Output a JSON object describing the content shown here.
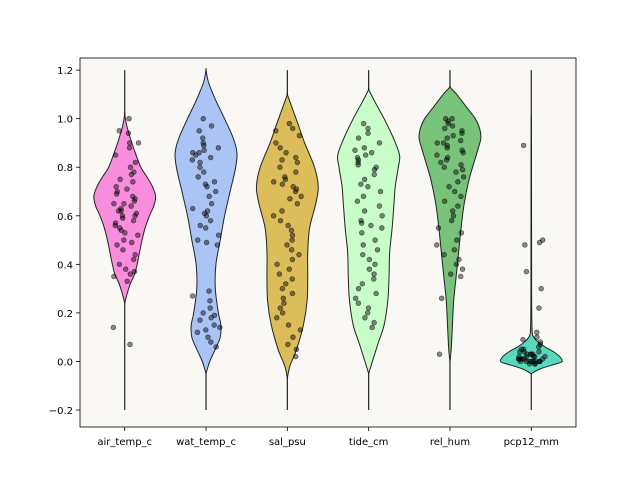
{
  "chart_data": {
    "type": "violin",
    "categories": [
      "air_temp_c",
      "wat_temp_c",
      "sal_psu",
      "tide_cm",
      "rel_hum",
      "pcp12_mm"
    ],
    "ylim": [
      -0.27,
      1.25
    ],
    "yticks": [
      -0.2,
      0.0,
      0.2,
      0.4,
      0.6,
      0.8,
      1.0,
      1.2
    ],
    "ytick_labels": [
      "−0.2",
      "0.0",
      "0.2",
      "0.4",
      "0.6",
      "0.8",
      "1.0",
      "1.2"
    ],
    "xlabel": "",
    "ylabel": "",
    "title": "",
    "grid": false,
    "background": "#f9f8f4",
    "point_color": "#000000",
    "series": [
      {
        "category": "air_temp_c",
        "color": "#f98ede",
        "range": [
          -0.2,
          1.2
        ],
        "density": [
          [
            0.24,
            0
          ],
          [
            0.28,
            0.08
          ],
          [
            0.32,
            0.18
          ],
          [
            0.36,
            0.32
          ],
          [
            0.4,
            0.4
          ],
          [
            0.45,
            0.48
          ],
          [
            0.5,
            0.56
          ],
          [
            0.55,
            0.66
          ],
          [
            0.6,
            0.8
          ],
          [
            0.64,
            0.94
          ],
          [
            0.68,
            1.0
          ],
          [
            0.72,
            0.9
          ],
          [
            0.76,
            0.72
          ],
          [
            0.8,
            0.52
          ],
          [
            0.86,
            0.34
          ],
          [
            0.92,
            0.18
          ],
          [
            0.98,
            0.05
          ],
          [
            1.02,
            0
          ]
        ],
        "points": [
          1.0,
          0.95,
          0.94,
          0.9,
          0.9,
          0.88,
          0.85,
          0.82,
          0.8,
          0.78,
          0.77,
          0.75,
          0.74,
          0.72,
          0.71,
          0.7,
          0.69,
          0.68,
          0.67,
          0.66,
          0.65,
          0.65,
          0.64,
          0.63,
          0.62,
          0.62,
          0.61,
          0.6,
          0.6,
          0.59,
          0.58,
          0.57,
          0.56,
          0.55,
          0.54,
          0.53,
          0.52,
          0.5,
          0.49,
          0.48,
          0.46,
          0.44,
          0.42,
          0.4,
          0.38,
          0.37,
          0.36,
          0.35,
          0.33,
          0.14,
          0.07
        ]
      },
      {
        "category": "wat_temp_c",
        "color": "#aac4f6",
        "range": [
          -0.2,
          1.2
        ],
        "density": [
          [
            -0.05,
            0
          ],
          [
            0.0,
            0.12
          ],
          [
            0.05,
            0.3
          ],
          [
            0.1,
            0.46
          ],
          [
            0.15,
            0.48
          ],
          [
            0.2,
            0.4
          ],
          [
            0.3,
            0.3
          ],
          [
            0.4,
            0.32
          ],
          [
            0.5,
            0.46
          ],
          [
            0.6,
            0.6
          ],
          [
            0.7,
            0.78
          ],
          [
            0.8,
            0.96
          ],
          [
            0.86,
            1.0
          ],
          [
            0.92,
            0.88
          ],
          [
            1.0,
            0.6
          ],
          [
            1.08,
            0.3
          ],
          [
            1.15,
            0.08
          ],
          [
            1.2,
            0
          ]
        ],
        "points": [
          1.0,
          0.97,
          0.95,
          0.92,
          0.9,
          0.89,
          0.88,
          0.87,
          0.86,
          0.86,
          0.85,
          0.84,
          0.83,
          0.82,
          0.8,
          0.78,
          0.76,
          0.74,
          0.73,
          0.72,
          0.7,
          0.68,
          0.65,
          0.63,
          0.62,
          0.61,
          0.6,
          0.58,
          0.56,
          0.55,
          0.52,
          0.5,
          0.49,
          0.48,
          0.29,
          0.27,
          0.25,
          0.22,
          0.2,
          0.19,
          0.18,
          0.17,
          0.15,
          0.14,
          0.13,
          0.12,
          0.1,
          0.08,
          0.06
        ]
      },
      {
        "category": "sal_psu",
        "color": "#dcbd5a",
        "range": [
          -0.2,
          1.2
        ],
        "density": [
          [
            -0.07,
            0
          ],
          [
            -0.02,
            0.08
          ],
          [
            0.05,
            0.3
          ],
          [
            0.15,
            0.52
          ],
          [
            0.25,
            0.64
          ],
          [
            0.35,
            0.66
          ],
          [
            0.45,
            0.66
          ],
          [
            0.55,
            0.72
          ],
          [
            0.65,
            0.92
          ],
          [
            0.72,
            1.0
          ],
          [
            0.8,
            0.88
          ],
          [
            0.9,
            0.56
          ],
          [
            0.98,
            0.34
          ],
          [
            1.05,
            0.14
          ],
          [
            1.1,
            0
          ]
        ],
        "points": [
          0.98,
          0.96,
          0.95,
          0.93,
          0.9,
          0.88,
          0.86,
          0.84,
          0.83,
          0.82,
          0.8,
          0.78,
          0.76,
          0.75,
          0.74,
          0.73,
          0.72,
          0.71,
          0.7,
          0.68,
          0.67,
          0.65,
          0.62,
          0.6,
          0.58,
          0.56,
          0.54,
          0.52,
          0.5,
          0.48,
          0.46,
          0.44,
          0.42,
          0.4,
          0.38,
          0.36,
          0.34,
          0.32,
          0.3,
          0.28,
          0.26,
          0.24,
          0.22,
          0.2,
          0.18,
          0.15,
          0.13,
          0.1,
          0.07,
          0.05,
          0.02
        ]
      },
      {
        "category": "tide_cm",
        "color": "#c8fcc8",
        "range": [
          -0.2,
          1.2
        ],
        "density": [
          [
            -0.05,
            0
          ],
          [
            0.0,
            0.12
          ],
          [
            0.08,
            0.32
          ],
          [
            0.15,
            0.5
          ],
          [
            0.25,
            0.62
          ],
          [
            0.35,
            0.66
          ],
          [
            0.45,
            0.68
          ],
          [
            0.55,
            0.76
          ],
          [
            0.65,
            0.82
          ],
          [
            0.72,
            0.86
          ],
          [
            0.8,
            0.96
          ],
          [
            0.85,
            1.0
          ],
          [
            0.92,
            0.8
          ],
          [
            1.0,
            0.5
          ],
          [
            1.07,
            0.2
          ],
          [
            1.12,
            0
          ]
        ],
        "points": [
          0.98,
          0.96,
          0.94,
          0.92,
          0.9,
          0.88,
          0.87,
          0.86,
          0.85,
          0.84,
          0.83,
          0.82,
          0.81,
          0.8,
          0.79,
          0.77,
          0.75,
          0.73,
          0.72,
          0.7,
          0.68,
          0.66,
          0.64,
          0.62,
          0.6,
          0.58,
          0.57,
          0.56,
          0.55,
          0.53,
          0.5,
          0.48,
          0.46,
          0.44,
          0.42,
          0.4,
          0.38,
          0.36,
          0.34,
          0.32,
          0.3,
          0.28,
          0.26,
          0.24,
          0.22,
          0.2,
          0.18,
          0.16,
          0.14
        ]
      },
      {
        "category": "rel_hum",
        "color": "#79c27a",
        "range": [
          -0.2,
          1.2
        ],
        "density": [
          [
            0.0,
            0
          ],
          [
            0.05,
            0.04
          ],
          [
            0.15,
            0.08
          ],
          [
            0.25,
            0.12
          ],
          [
            0.35,
            0.2
          ],
          [
            0.45,
            0.28
          ],
          [
            0.55,
            0.36
          ],
          [
            0.65,
            0.46
          ],
          [
            0.75,
            0.62
          ],
          [
            0.82,
            0.78
          ],
          [
            0.88,
            0.92
          ],
          [
            0.92,
            1.0
          ],
          [
            0.96,
            0.96
          ],
          [
            1.0,
            0.82
          ],
          [
            1.05,
            0.52
          ],
          [
            1.1,
            0.22
          ],
          [
            1.13,
            0
          ]
        ],
        "points": [
          1.0,
          1.0,
          0.99,
          0.98,
          0.97,
          0.96,
          0.95,
          0.94,
          0.93,
          0.92,
          0.91,
          0.9,
          0.9,
          0.89,
          0.88,
          0.87,
          0.86,
          0.85,
          0.84,
          0.83,
          0.82,
          0.81,
          0.8,
          0.79,
          0.78,
          0.76,
          0.74,
          0.72,
          0.7,
          0.68,
          0.66,
          0.64,
          0.62,
          0.6,
          0.58,
          0.55,
          0.53,
          0.5,
          0.48,
          0.46,
          0.44,
          0.42,
          0.4,
          0.38,
          0.36,
          0.35,
          0.26,
          0.03
        ]
      },
      {
        "category": "pcp12_mm",
        "color": "#58d9bd",
        "range": [
          -0.2,
          1.2
        ],
        "density": [
          [
            -0.05,
            0
          ],
          [
            -0.03,
            0.3
          ],
          [
            -0.01,
            0.8
          ],
          [
            0.0,
            1.0
          ],
          [
            0.02,
            0.92
          ],
          [
            0.04,
            0.72
          ],
          [
            0.06,
            0.44
          ],
          [
            0.08,
            0.22
          ],
          [
            0.1,
            0.08
          ],
          [
            0.12,
            0.03
          ],
          [
            0.2,
            0.015
          ],
          [
            0.3,
            0.01
          ],
          [
            0.5,
            0.01
          ],
          [
            0.9,
            0.005
          ],
          [
            1.0,
            0
          ]
        ],
        "points": [
          0.89,
          0.5,
          0.49,
          0.48,
          0.37,
          0.3,
          0.22,
          0.12,
          0.1,
          0.09,
          0.08,
          0.07,
          0.06,
          0.05,
          0.05,
          0.04,
          0.04,
          0.03,
          0.03,
          0.03,
          0.02,
          0.02,
          0.02,
          0.01,
          0.01,
          0.01,
          0.01,
          0.0,
          0.0,
          0.0,
          0.0,
          0.0,
          0.0,
          -0.01,
          -0.01,
          -0.01,
          0.0,
          0.01,
          0.02,
          0.03,
          0.04,
          0.0,
          0.01,
          0.02,
          0.0
        ]
      }
    ]
  }
}
